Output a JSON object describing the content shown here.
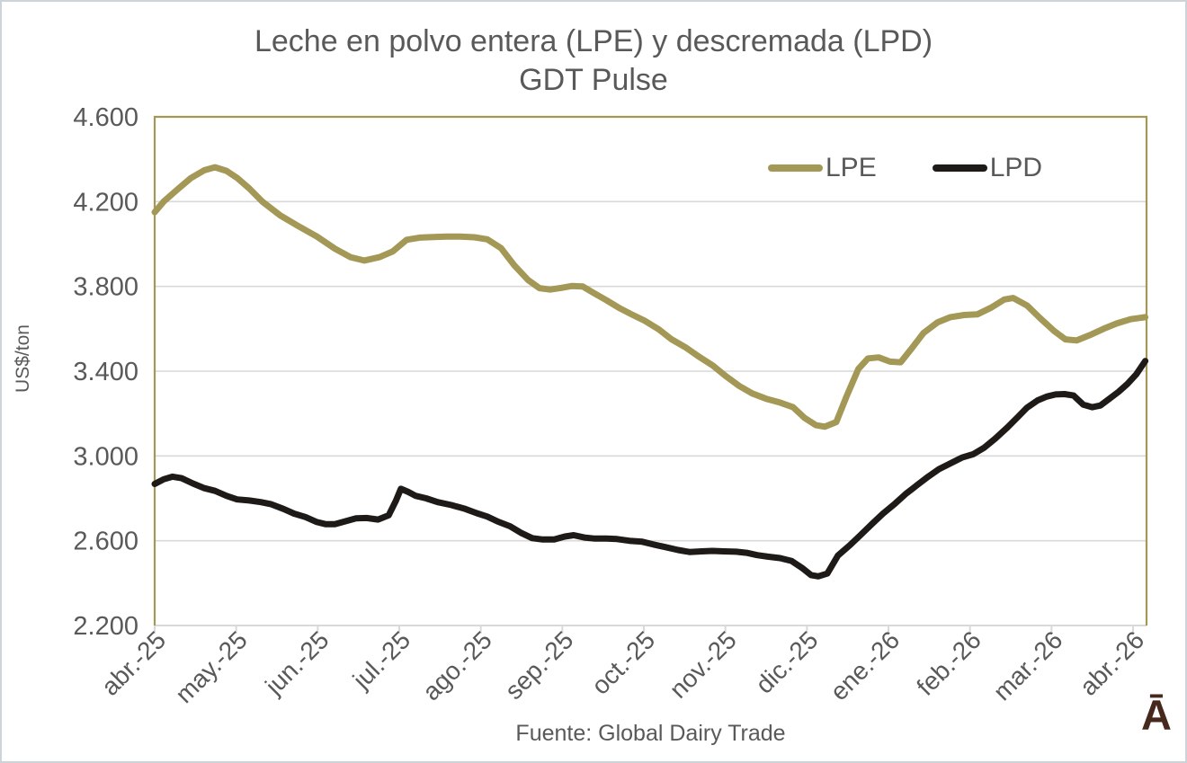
{
  "chart_data": {
    "type": "line",
    "title": "Leche en polvo entera (LPE) y descremada (LPD)",
    "subtitle": "GDT Pulse",
    "ylabel": "US$/ton",
    "source_note": "Fuente: Global Dairy Trade",
    "brand_mark": "Ā",
    "grid": "horizontal",
    "legend_position": "top-right-inside",
    "ylim": [
      2200,
      4600
    ],
    "yticks": [
      2200,
      2600,
      3000,
      3400,
      3800,
      4200,
      4600
    ],
    "ytick_labels": [
      "2.200",
      "2.600",
      "3.000",
      "3.400",
      "3.800",
      "4.200",
      "4.600"
    ],
    "x_tick_labels": [
      "abr.-25",
      "may.-25",
      "jun.-25",
      "jul.-25",
      "ago.-25",
      "sep.-25",
      "oct.-25",
      "nov.-25",
      "dic.-25",
      "ene.-26",
      "feb.-26",
      "mar.-26",
      "abr.-26"
    ],
    "x_unit": "months_from_abr25",
    "x_data_span": 12.15,
    "colors": {
      "lpe": "#A39855",
      "lpd": "#1E1A18",
      "grid": "#D9D9D9",
      "axis_text": "#595959",
      "plot_border": "#A39855",
      "brand": "#46281C"
    },
    "series": [
      {
        "name": "LPE",
        "color_key": "lpe",
        "points": [
          [
            0,
            4150
          ],
          [
            0.11,
            4200
          ],
          [
            0.28,
            4258
          ],
          [
            0.44,
            4310
          ],
          [
            0.61,
            4348
          ],
          [
            0.74,
            4362
          ],
          [
            0.88,
            4345
          ],
          [
            1.01,
            4312
          ],
          [
            1.16,
            4262
          ],
          [
            1.32,
            4200
          ],
          [
            1.54,
            4135
          ],
          [
            1.76,
            4085
          ],
          [
            1.99,
            4035
          ],
          [
            2.21,
            3978
          ],
          [
            2.4,
            3938
          ],
          [
            2.57,
            3922
          ],
          [
            2.76,
            3938
          ],
          [
            2.92,
            3965
          ],
          [
            3.09,
            4020
          ],
          [
            3.25,
            4030
          ],
          [
            3.42,
            4033
          ],
          [
            3.58,
            4035
          ],
          [
            3.75,
            4035
          ],
          [
            3.92,
            4032
          ],
          [
            4.08,
            4022
          ],
          [
            4.25,
            3980
          ],
          [
            4.41,
            3900
          ],
          [
            4.58,
            3830
          ],
          [
            4.72,
            3792
          ],
          [
            4.85,
            3785
          ],
          [
            4.99,
            3793
          ],
          [
            5.12,
            3802
          ],
          [
            5.25,
            3800
          ],
          [
            5.38,
            3770
          ],
          [
            5.54,
            3735
          ],
          [
            5.69,
            3700
          ],
          [
            5.85,
            3668
          ],
          [
            6.01,
            3638
          ],
          [
            6.18,
            3598
          ],
          [
            6.34,
            3550
          ],
          [
            6.51,
            3513
          ],
          [
            6.67,
            3470
          ],
          [
            6.84,
            3428
          ],
          [
            7.0,
            3378
          ],
          [
            7.17,
            3330
          ],
          [
            7.33,
            3295
          ],
          [
            7.5,
            3270
          ],
          [
            7.67,
            3252
          ],
          [
            7.83,
            3230
          ],
          [
            7.97,
            3180
          ],
          [
            8.11,
            3145
          ],
          [
            8.22,
            3138
          ],
          [
            8.36,
            3160
          ],
          [
            8.49,
            3285
          ],
          [
            8.63,
            3410
          ],
          [
            8.75,
            3460
          ],
          [
            8.88,
            3465
          ],
          [
            9.02,
            3445
          ],
          [
            9.15,
            3442
          ],
          [
            9.29,
            3510
          ],
          [
            9.43,
            3580
          ],
          [
            9.6,
            3630
          ],
          [
            9.76,
            3655
          ],
          [
            9.93,
            3665
          ],
          [
            10.09,
            3668
          ],
          [
            10.26,
            3700
          ],
          [
            10.42,
            3738
          ],
          [
            10.53,
            3745
          ],
          [
            10.7,
            3710
          ],
          [
            10.86,
            3650
          ],
          [
            11.03,
            3590
          ],
          [
            11.17,
            3550
          ],
          [
            11.31,
            3545
          ],
          [
            11.47,
            3570
          ],
          [
            11.64,
            3600
          ],
          [
            11.8,
            3625
          ],
          [
            11.97,
            3645
          ],
          [
            12.15,
            3655
          ]
        ]
      },
      {
        "name": "LPD",
        "color_key": "lpd",
        "points": [
          [
            0,
            2868
          ],
          [
            0.11,
            2890
          ],
          [
            0.22,
            2902
          ],
          [
            0.33,
            2895
          ],
          [
            0.47,
            2870
          ],
          [
            0.61,
            2848
          ],
          [
            0.74,
            2835
          ],
          [
            0.88,
            2812
          ],
          [
            1.01,
            2795
          ],
          [
            1.16,
            2790
          ],
          [
            1.3,
            2782
          ],
          [
            1.43,
            2772
          ],
          [
            1.58,
            2750
          ],
          [
            1.71,
            2728
          ],
          [
            1.85,
            2712
          ],
          [
            1.99,
            2688
          ],
          [
            2.1,
            2678
          ],
          [
            2.21,
            2678
          ],
          [
            2.34,
            2692
          ],
          [
            2.47,
            2706
          ],
          [
            2.6,
            2707
          ],
          [
            2.74,
            2700
          ],
          [
            2.87,
            2720
          ],
          [
            2.96,
            2790
          ],
          [
            3.02,
            2845
          ],
          [
            3.11,
            2830
          ],
          [
            3.2,
            2812
          ],
          [
            3.33,
            2800
          ],
          [
            3.47,
            2782
          ],
          [
            3.64,
            2768
          ],
          [
            3.81,
            2750
          ],
          [
            3.95,
            2730
          ],
          [
            4.08,
            2714
          ],
          [
            4.21,
            2690
          ],
          [
            4.36,
            2668
          ],
          [
            4.5,
            2636
          ],
          [
            4.63,
            2612
          ],
          [
            4.76,
            2606
          ],
          [
            4.9,
            2606
          ],
          [
            5.03,
            2620
          ],
          [
            5.14,
            2626
          ],
          [
            5.27,
            2615
          ],
          [
            5.4,
            2610
          ],
          [
            5.54,
            2610
          ],
          [
            5.67,
            2608
          ],
          [
            5.82,
            2600
          ],
          [
            5.98,
            2595
          ],
          [
            6.12,
            2582
          ],
          [
            6.26,
            2570
          ],
          [
            6.42,
            2556
          ],
          [
            6.56,
            2547
          ],
          [
            6.71,
            2550
          ],
          [
            6.84,
            2552
          ],
          [
            6.98,
            2550
          ],
          [
            7.13,
            2548
          ],
          [
            7.26,
            2543
          ],
          [
            7.39,
            2532
          ],
          [
            7.52,
            2525
          ],
          [
            7.67,
            2518
          ],
          [
            7.81,
            2505
          ],
          [
            7.94,
            2472
          ],
          [
            8.05,
            2438
          ],
          [
            8.14,
            2432
          ],
          [
            8.25,
            2445
          ],
          [
            8.38,
            2530
          ],
          [
            8.53,
            2580
          ],
          [
            8.66,
            2628
          ],
          [
            8.8,
            2680
          ],
          [
            8.93,
            2727
          ],
          [
            9.08,
            2775
          ],
          [
            9.21,
            2820
          ],
          [
            9.35,
            2862
          ],
          [
            9.49,
            2903
          ],
          [
            9.62,
            2938
          ],
          [
            9.76,
            2965
          ],
          [
            9.9,
            2992
          ],
          [
            10.04,
            3008
          ],
          [
            10.17,
            3038
          ],
          [
            10.31,
            3082
          ],
          [
            10.46,
            3135
          ],
          [
            10.59,
            3185
          ],
          [
            10.7,
            3228
          ],
          [
            10.83,
            3262
          ],
          [
            10.94,
            3280
          ],
          [
            11.05,
            3290
          ],
          [
            11.16,
            3292
          ],
          [
            11.27,
            3285
          ],
          [
            11.39,
            3242
          ],
          [
            11.5,
            3230
          ],
          [
            11.6,
            3238
          ],
          [
            11.71,
            3270
          ],
          [
            11.82,
            3302
          ],
          [
            11.93,
            3340
          ],
          [
            12.04,
            3385
          ],
          [
            12.15,
            3448
          ]
        ]
      }
    ]
  }
}
